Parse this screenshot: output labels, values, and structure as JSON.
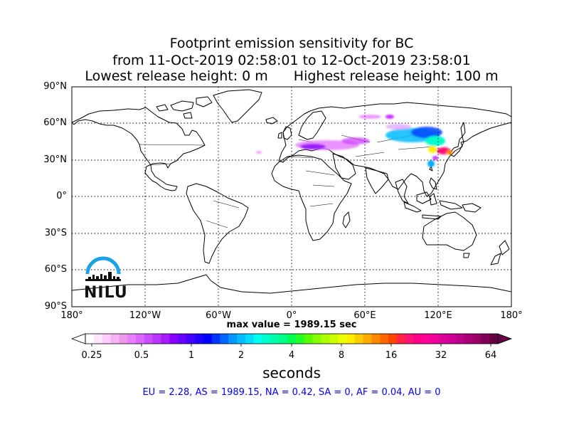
{
  "title": {
    "line1": "Footprint emission sensitivity for BC",
    "line2": "from 11-Oct-2019 02:58:01 to 12-Oct-2019 23:58:01",
    "lowest": "Lowest release height: 0 m",
    "highest": "Highest release height: 100 m"
  },
  "map": {
    "lat_labels": [
      "90°N",
      "60°N",
      "30°N",
      "0°",
      "30°S",
      "60°S",
      "90°S"
    ],
    "lon_labels": [
      "180°",
      "120°W",
      "60°W",
      "0°",
      "60°E",
      "120°E",
      "180°"
    ],
    "gridlines": "dotted",
    "plume_colors": [
      "#ff66ff",
      "#cc33ff",
      "#00ccff",
      "#3366ff",
      "#ffff00",
      "#ff0066"
    ]
  },
  "max_value": "max value = 1989.15 sec",
  "colorbar": {
    "labels": [
      "0.25",
      "0.5",
      "1",
      "2",
      "4",
      "8",
      "16",
      "32",
      "64"
    ],
    "units": "seconds",
    "colors": [
      "#ffffff",
      "#ffe6ff",
      "#ffccff",
      "#f7b3f7",
      "#ee99ee",
      "#e680ff",
      "#d966ff",
      "#cc4dff",
      "#bb33ff",
      "#aa1aff",
      "#8800ff",
      "#6600ff",
      "#4400ff",
      "#2200ff",
      "#0000ff",
      "#0033ff",
      "#0066ff",
      "#0099ff",
      "#00bbff",
      "#00ddff",
      "#00ffee",
      "#00ffcc",
      "#00ffaa",
      "#00ff88",
      "#00ff55",
      "#22ff22",
      "#55ff00",
      "#88ff00",
      "#aaff00",
      "#ccff00",
      "#eeff00",
      "#ffee00",
      "#ffcc00",
      "#ffaa00",
      "#ff8800",
      "#ff6600",
      "#ff4400",
      "#ff2244",
      "#ff1177",
      "#ff0088",
      "#ff0099",
      "#ee0099",
      "#dd0099",
      "#cc0099",
      "#bb0088",
      "#aa0077",
      "#990066",
      "#800055",
      "#660044"
    ]
  },
  "stats": "EU = 2.28,  AS = 1989.15,  NA = 0.42,  SA = 0,  AF = 0.04,  AU = 0",
  "logo": {
    "text": "NILU",
    "color": "#1aa3e8"
  }
}
